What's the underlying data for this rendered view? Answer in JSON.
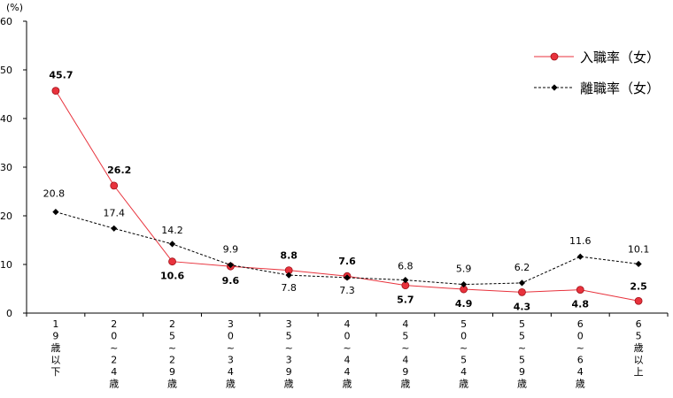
{
  "chart_data": {
    "type": "line",
    "y_unit": "(%)",
    "ylim": [
      0,
      60
    ],
    "y_ticks": [
      0,
      10,
      20,
      30,
      40,
      50,
      60
    ],
    "grid": false,
    "legend_position": "top-right",
    "categories": [
      [
        "1",
        "9",
        "歳",
        "以",
        "下"
      ],
      [
        "2",
        "0",
        "~",
        "2",
        "4",
        "歳"
      ],
      [
        "2",
        "5",
        "~",
        "2",
        "9",
        "歳"
      ],
      [
        "3",
        "0",
        "~",
        "3",
        "4",
        "歳"
      ],
      [
        "3",
        "5",
        "~",
        "3",
        "9",
        "歳"
      ],
      [
        "4",
        "0",
        "~",
        "4",
        "4",
        "歳"
      ],
      [
        "4",
        "5",
        "~",
        "4",
        "9",
        "歳"
      ],
      [
        "5",
        "0",
        "~",
        "5",
        "4",
        "歳"
      ],
      [
        "5",
        "5",
        "~",
        "5",
        "9",
        "歳"
      ],
      [
        "6",
        "0",
        "~",
        "6",
        "4",
        "歳"
      ],
      [
        "6",
        "5",
        "歳",
        "以",
        "上"
      ]
    ],
    "series": [
      {
        "name": "入職率（女）",
        "color": "#e8323c",
        "marker": "circle",
        "line_style": "solid",
        "values": [
          45.7,
          26.2,
          10.6,
          9.6,
          8.8,
          7.6,
          5.7,
          4.9,
          4.3,
          4.8,
          2.5
        ],
        "labels": [
          "45.7",
          "26.2",
          "10.6",
          "9.6",
          "8.8",
          "7.6",
          "5.7",
          "4.9",
          "4.3",
          "4.8",
          "2.5"
        ]
      },
      {
        "name": "離職率（女）",
        "color": "#000000",
        "marker": "diamond",
        "line_style": "dashed",
        "values": [
          20.8,
          17.4,
          14.2,
          9.9,
          7.8,
          7.3,
          6.8,
          5.9,
          6.2,
          11.6,
          10.1
        ],
        "labels": [
          "20.8",
          "17.4",
          "14.2",
          "9.9",
          "7.8",
          "7.3",
          "6.8",
          "5.9",
          "6.2",
          "11.6",
          "10.1"
        ]
      }
    ]
  }
}
